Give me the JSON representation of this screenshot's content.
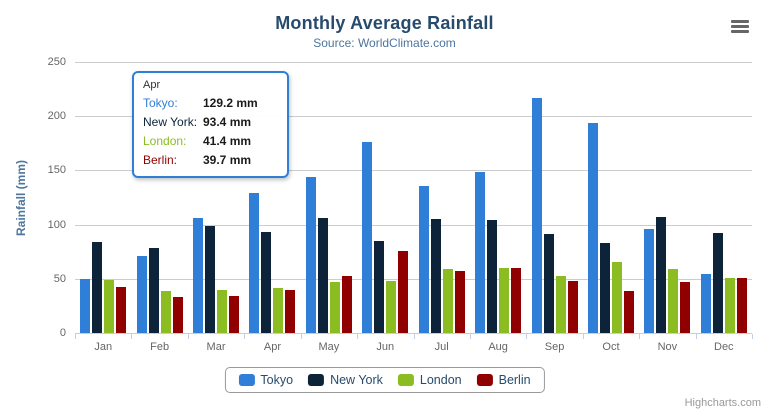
{
  "chart_data": {
    "type": "bar",
    "title": "Monthly Average Rainfall",
    "subtitle": "Source: WorldClimate.com",
    "xlabel": "",
    "ylabel": "Rainfall (mm)",
    "categories": [
      "Jan",
      "Feb",
      "Mar",
      "Apr",
      "May",
      "Jun",
      "Jul",
      "Aug",
      "Sep",
      "Oct",
      "Nov",
      "Dec"
    ],
    "series": [
      {
        "name": "Tokyo",
        "color": "#2f7ed8",
        "values": [
          49.9,
          71.5,
          106.4,
          129.2,
          144.0,
          176.0,
          135.6,
          148.5,
          216.4,
          194.1,
          95.6,
          54.4
        ]
      },
      {
        "name": "New York",
        "color": "#0d233a",
        "values": [
          83.6,
          78.8,
          98.5,
          93.4,
          106.0,
          84.5,
          105.0,
          104.3,
          91.2,
          83.5,
          106.6,
          92.3
        ]
      },
      {
        "name": "London",
        "color": "#8bbc21",
        "values": [
          48.9,
          38.8,
          39.3,
          41.4,
          47.0,
          48.3,
          59.0,
          59.6,
          52.4,
          65.2,
          59.3,
          51.2
        ]
      },
      {
        "name": "Berlin",
        "color": "#910000",
        "values": [
          42.4,
          33.2,
          34.5,
          39.7,
          52.6,
          75.5,
          57.4,
          60.4,
          47.6,
          39.1,
          46.8,
          51.1
        ]
      }
    ],
    "ylim": [
      0,
      250
    ],
    "yticks": [
      0,
      50,
      100,
      150,
      200,
      250
    ],
    "grid": true,
    "legend_position": "bottom"
  },
  "tooltip": {
    "category": "Apr",
    "border_color": "#2f7ed8",
    "rows": [
      {
        "label": "Tokyo:",
        "value": "129.2 mm",
        "color": "#2f7ed8"
      },
      {
        "label": "New York:",
        "value": "93.4 mm",
        "color": "#0d233a"
      },
      {
        "label": "London:",
        "value": "41.4 mm",
        "color": "#8bbc21"
      },
      {
        "label": "Berlin:",
        "value": "39.7 mm",
        "color": "#910000"
      }
    ]
  },
  "icons": {
    "menu": "hamburger-icon"
  },
  "colors": {
    "title_text": "#274b6d",
    "subtitle_text": "#4d759e",
    "axis_label": "#666666",
    "axis_line": "#C0D0E0",
    "gridline": "#cccccc"
  },
  "credits": "Highcharts.com"
}
